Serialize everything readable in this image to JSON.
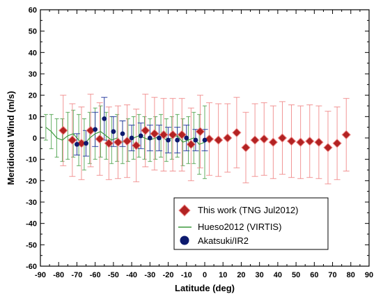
{
  "chart_data": {
    "type": "scatter",
    "xlabel": "Latitude (deg)",
    "ylabel": "Meridional Wind (m/s)",
    "xlim": [
      -90,
      90
    ],
    "ylim": [
      -60,
      60
    ],
    "x_ticks": [
      -90,
      -80,
      -70,
      -60,
      -50,
      -40,
      -30,
      -20,
      -10,
      0,
      10,
      20,
      30,
      40,
      50,
      60,
      70,
      80,
      90
    ],
    "y_ticks": [
      -60,
      -50,
      -40,
      -30,
      -20,
      -10,
      0,
      10,
      20,
      30,
      40,
      50,
      60
    ],
    "grid": false,
    "legend_position": "bottom-right",
    "series": [
      {
        "name": "Hueso2012 (VIRTIS)",
        "marker": "line",
        "color": "#3d9a3d",
        "error_color": "#3d9a3d",
        "x": [
          -87,
          -84,
          -81,
          -78,
          -75,
          -72,
          -69,
          -66,
          -63,
          -60,
          -57,
          -54,
          -51,
          -48,
          -45,
          -42,
          -39,
          -36,
          -33,
          -30,
          -27,
          -24,
          -21,
          -18,
          -15,
          -12,
          -9,
          -6,
          -3,
          0
        ],
        "y": [
          5,
          3,
          0,
          -1,
          1,
          2,
          -1,
          -3,
          0,
          2,
          3,
          1,
          -1,
          0,
          -2,
          -1,
          0,
          1,
          0,
          -1,
          0,
          1,
          -1,
          0,
          1,
          -2,
          -1,
          0,
          -3,
          -2
        ],
        "err": [
          6,
          8,
          9,
          10,
          11,
          11,
          12,
          12,
          12,
          12,
          12,
          11,
          11,
          11,
          10,
          10,
          10,
          10,
          10,
          10,
          10,
          10,
          10,
          10,
          10,
          11,
          11,
          12,
          14,
          17
        ]
      },
      {
        "name": "This work (TNG Jul2012)",
        "marker": "diamond",
        "color": "#b22222",
        "error_color": "#f08a8a",
        "x": [
          -77.5,
          -72.5,
          -67.5,
          -62.5,
          -57.5,
          -52.5,
          -47.5,
          -42.5,
          -37.5,
          -32.5,
          -27.5,
          -22.5,
          -17.5,
          -12.5,
          -7.5,
          -2.5,
          2.5,
          7.5,
          12.5,
          17.5,
          22.5,
          27.5,
          32.5,
          37.5,
          42.5,
          47.5,
          52.5,
          57.5,
          62.5,
          67.5,
          72.5,
          77.5
        ],
        "y": [
          3.5,
          -1,
          -2.5,
          3.5,
          -0.5,
          -2.5,
          -2,
          -1.5,
          -3.5,
          3.5,
          2,
          1.5,
          1.5,
          1.5,
          -3,
          3,
          -0.5,
          -1,
          0,
          2.5,
          -4.5,
          -1,
          -0.5,
          -2,
          0,
          -1.5,
          -2,
          -1.5,
          -2,
          -4.5,
          -2.5,
          1.5
        ],
        "err": [
          16.5,
          17,
          17,
          17,
          17,
          17,
          17,
          17,
          17,
          17,
          17,
          17,
          17,
          17,
          17,
          17,
          17,
          17,
          16,
          16.5,
          16.5,
          17,
          17,
          17,
          17,
          17,
          17,
          17,
          17,
          17,
          17,
          17
        ]
      },
      {
        "name": "Akatsuki/IR2",
        "marker": "circle",
        "color": "#0d1a6e",
        "error_color": "#1c2f9a",
        "x": [
          -70,
          -65,
          -60,
          -55,
          -50,
          -45,
          -40,
          -35,
          -30,
          -25,
          -20,
          -15,
          -10,
          -5,
          0
        ],
        "y": [
          -3,
          -2.5,
          4,
          9,
          3,
          2,
          0,
          1,
          0,
          0,
          -1,
          -1,
          0,
          -1,
          -1
        ],
        "err": [
          5,
          6,
          8,
          10,
          7,
          6,
          6,
          6,
          6,
          6,
          6,
          6,
          6,
          5,
          5
        ]
      }
    ]
  }
}
